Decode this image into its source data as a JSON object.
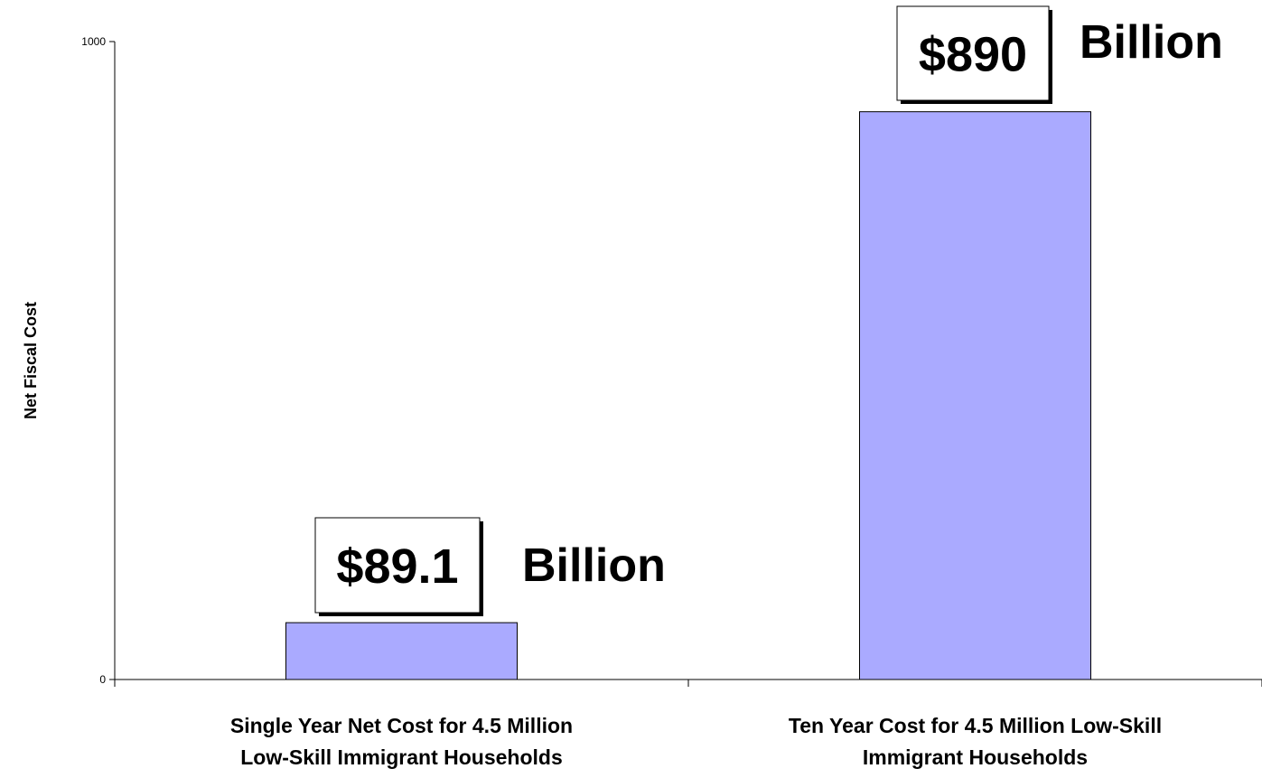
{
  "chart_data": {
    "type": "bar",
    "title": "",
    "xlabel": "",
    "ylabel": "Net Fiscal Cost",
    "ylim": [
      0,
      1000
    ],
    "yticks": [
      0,
      1000
    ],
    "grid": false,
    "legend": "none",
    "categories": [
      "Single Year Net Cost for 4.5 Million Low-Skill Immigrant Households",
      "Ten Year Cost for 4.5 Million Low-Skill Immigrant Households"
    ],
    "category_lines": [
      [
        "Single Year Net Cost for 4.5 Million",
        "Low-Skill Immigrant Households"
      ],
      [
        "Ten Year Cost for 4.5 Million Low-Skill",
        "Immigrant Households"
      ]
    ],
    "values": [
      89.1,
      890
    ],
    "bar_color": "#aaaaff",
    "data_labels": [
      {
        "amount": "$89.1",
        "unit": "Billion"
      },
      {
        "amount": "$890",
        "unit": "Billion"
      }
    ]
  }
}
